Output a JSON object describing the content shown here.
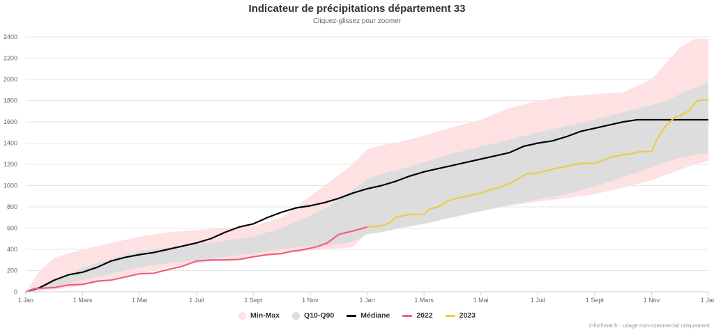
{
  "header": {
    "title": "Indicateur de précipitations département 33",
    "subtitle": "Cliquez-glissez pour zoomer"
  },
  "credits": "infoclimat.fr - usage non-commercial uniquement",
  "legend": [
    {
      "label": "Min-Max",
      "color": "#fde1e3",
      "symbol": "dot"
    },
    {
      "label": "Q10-Q90",
      "color": "#dddddd",
      "symbol": "dot"
    },
    {
      "label": "Médiane",
      "color": "#000000",
      "symbol": "line"
    },
    {
      "label": "2022",
      "color": "#ee5f7f",
      "symbol": "line"
    },
    {
      "label": "2023",
      "color": "#e8cd4a",
      "symbol": "line"
    }
  ],
  "chart_data": {
    "type": "area",
    "title": "Indicateur de précipitations département 33",
    "subtitle": "Cliquez-glissez pour zoomer",
    "x_unit": "months since 1 Jan 2022",
    "x_range": [
      0,
      24
    ],
    "x_ticks": [
      {
        "x": 0,
        "label": "1 Jan"
      },
      {
        "x": 2,
        "label": "1 Mars"
      },
      {
        "x": 4,
        "label": "1 Mai"
      },
      {
        "x": 6,
        "label": "1 Juil"
      },
      {
        "x": 8,
        "label": "1 Sept"
      },
      {
        "x": 10,
        "label": "1 Nov"
      },
      {
        "x": 12,
        "label": "1 Jan"
      },
      {
        "x": 14,
        "label": "1 Mars"
      },
      {
        "x": 16,
        "label": "1 Mai"
      },
      {
        "x": 18,
        "label": "1 Juil"
      },
      {
        "x": 20,
        "label": "1 Sept"
      },
      {
        "x": 22,
        "label": "1 Nov"
      },
      {
        "x": 24,
        "label": "1 Jan"
      }
    ],
    "ylim": [
      0,
      2400
    ],
    "y_ticks": [
      0,
      200,
      400,
      600,
      800,
      1000,
      1200,
      1400,
      1600,
      1800,
      2000,
      2200,
      2400
    ],
    "grid": true,
    "legend_position": "bottom",
    "colors": {
      "minmax": "#fde1e3",
      "q10q90": "#dddddd",
      "median": "#000000",
      "y2022": "#ee5f7f",
      "y2023": "#e8cd4a",
      "grid": "#e6e6e6",
      "axis": "#cccccc",
      "tick_text": "#666666"
    },
    "series": [
      {
        "name": "Min-Max",
        "type": "arearange",
        "x": [
          0,
          0.5,
          1,
          1.5,
          2,
          3,
          4,
          5,
          6,
          7,
          8,
          9,
          10,
          10.5,
          11,
          11.5,
          12,
          12.5,
          13,
          14,
          15,
          16,
          17,
          18,
          19,
          20,
          21,
          22,
          22.5,
          23,
          23.5,
          24
        ],
        "low": [
          0,
          5,
          20,
          40,
          60,
          120,
          170,
          230,
          270,
          300,
          330,
          360,
          390,
          400,
          410,
          420,
          560,
          600,
          620,
          650,
          700,
          760,
          810,
          850,
          880,
          920,
          980,
          1050,
          1100,
          1150,
          1200,
          1230
        ],
        "high": [
          0,
          200,
          320,
          360,
          400,
          460,
          520,
          560,
          580,
          600,
          620,
          700,
          900,
          1000,
          1100,
          1200,
          1340,
          1380,
          1400,
          1470,
          1550,
          1620,
          1730,
          1800,
          1840,
          1860,
          1880,
          2000,
          2150,
          2300,
          2380,
          2380
        ]
      },
      {
        "name": "Q10-Q90",
        "type": "arearange",
        "x": [
          0,
          0.5,
          1,
          1.5,
          2,
          3,
          4,
          5,
          6,
          7,
          8,
          9,
          10,
          10.5,
          11,
          11.5,
          12,
          12.5,
          13,
          14,
          15,
          16,
          17,
          18,
          19,
          20,
          21,
          22,
          22.5,
          23,
          23.5,
          24
        ],
        "low": [
          0,
          20,
          50,
          80,
          110,
          170,
          230,
          270,
          300,
          330,
          360,
          400,
          430,
          440,
          450,
          470,
          540,
          560,
          590,
          640,
          700,
          760,
          820,
          870,
          920,
          990,
          1080,
          1170,
          1220,
          1260,
          1290,
          1310
        ],
        "high": [
          0,
          60,
          120,
          170,
          230,
          310,
          380,
          420,
          450,
          480,
          520,
          600,
          720,
          780,
          870,
          960,
          1060,
          1110,
          1140,
          1220,
          1300,
          1370,
          1430,
          1500,
          1560,
          1620,
          1690,
          1760,
          1800,
          1860,
          1920,
          1970
        ]
      },
      {
        "name": "Médiane",
        "type": "line",
        "x": [
          0,
          0.5,
          1,
          1.5,
          2,
          2.5,
          3,
          3.5,
          4,
          4.5,
          5,
          5.5,
          6,
          6.5,
          7,
          7.5,
          8,
          8.5,
          9,
          9.5,
          10,
          10.5,
          11,
          11.5,
          12,
          12.5,
          13,
          13.5,
          14,
          14.5,
          15,
          15.5,
          16,
          16.5,
          17,
          17.5,
          18,
          18.5,
          19,
          19.5,
          20,
          20.5,
          21,
          21.5,
          22,
          22.5,
          23,
          23.5,
          24
        ],
        "y": [
          0,
          40,
          110,
          160,
          185,
          230,
          290,
          325,
          350,
          370,
          400,
          430,
          460,
          500,
          560,
          610,
          640,
          700,
          750,
          790,
          810,
          840,
          880,
          930,
          970,
          1000,
          1040,
          1090,
          1130,
          1160,
          1190,
          1220,
          1250,
          1280,
          1310,
          1370,
          1400,
          1420,
          1460,
          1510,
          1540,
          1570,
          1600,
          1620,
          1620,
          1620,
          1620,
          1620,
          1620
        ]
      },
      {
        "name": "2022",
        "type": "line",
        "x": [
          0,
          0.3,
          0.6,
          1,
          1.5,
          2,
          2.5,
          3,
          3.5,
          4,
          4.5,
          5,
          5.5,
          6,
          6.5,
          7,
          7.5,
          8,
          8.5,
          9,
          9.3,
          9.6,
          10,
          10.3,
          10.6,
          11,
          11.3,
          11.6,
          12
        ],
        "y": [
          0,
          30,
          35,
          40,
          65,
          70,
          100,
          110,
          140,
          170,
          175,
          210,
          240,
          290,
          300,
          300,
          305,
          330,
          350,
          360,
          380,
          390,
          410,
          430,
          460,
          540,
          560,
          580,
          610
        ]
      },
      {
        "name": "2023",
        "type": "line",
        "x": [
          12,
          12.5,
          12.8,
          13,
          13.5,
          14,
          14.2,
          14.5,
          14.8,
          15,
          15.5,
          16,
          16.3,
          16.6,
          17,
          17.3,
          17.6,
          18,
          18.3,
          18.6,
          19,
          19.3,
          19.6,
          20,
          20.3,
          20.6,
          21,
          21.3,
          21.6,
          22,
          22.2,
          22.5,
          22.8,
          23,
          23.3,
          23.6,
          24
        ],
        "y": [
          610,
          620,
          650,
          700,
          730,
          730,
          780,
          800,
          850,
          870,
          900,
          930,
          960,
          980,
          1020,
          1060,
          1110,
          1120,
          1140,
          1160,
          1180,
          1200,
          1210,
          1210,
          1240,
          1270,
          1290,
          1300,
          1320,
          1320,
          1440,
          1560,
          1640,
          1660,
          1700,
          1800,
          1810
        ]
      }
    ]
  }
}
